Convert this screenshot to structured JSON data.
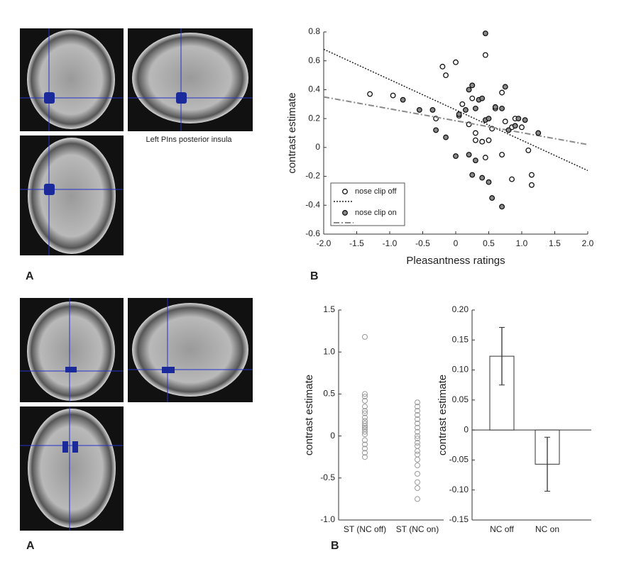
{
  "labels": {
    "caption": "Left PIns posterior insula",
    "top_left": "A",
    "top_right": "B",
    "bottom_left": "A",
    "bottom_right": "B"
  },
  "chart_data": [
    {
      "type": "scatter",
      "x_label": "Pleasantness ratings",
      "y_label": "contrast estimate",
      "xlim": [
        -2,
        2
      ],
      "ylim": [
        -0.6,
        0.8
      ],
      "xticks": [
        {
          "value": -2,
          "label": "-2.0"
        },
        -1.5,
        {
          "value": -1,
          "label": "-1.0"
        },
        -0.5,
        0,
        0.5,
        {
          "value": 1,
          "label": "1.0"
        },
        1.5,
        {
          "value": 2,
          "label": "2.0"
        }
      ],
      "yticks": [
        -0.6,
        -0.4,
        -0.2,
        0,
        0.2,
        0.4,
        0.6,
        0.8
      ],
      "legend": "lower left",
      "series": [
        {
          "name": "nose clip off",
          "color": "#ffffff",
          "line_color": "#222222",
          "x": [
            -1.3,
            -0.95,
            -0.2,
            -0.15,
            0,
            0.45,
            0.1,
            0.25,
            0.3,
            0.3,
            0.4,
            0.5,
            0.55,
            0.2,
            0.7,
            0.75,
            0.85,
            0.9,
            1,
            1.1,
            1.15,
            1.15,
            0.85,
            0.7,
            0.45,
            0.05,
            0.6,
            -0.3
          ],
          "y": [
            0.37,
            0.36,
            0.56,
            0.5,
            0.59,
            0.64,
            0.3,
            0.34,
            0.1,
            0.05,
            0.04,
            0.05,
            0.13,
            0.16,
            0.38,
            0.18,
            0.14,
            0.2,
            0.14,
            -0.02,
            -0.19,
            -0.26,
            -0.22,
            -0.05,
            -0.07,
            0.22,
            0.27,
            0.2
          ],
          "trend": {
            "x": [
              -2,
              2
            ],
            "y": [
              0.68,
              -0.16
            ]
          }
        },
        {
          "name": "nose clip on",
          "color": "#8a8a8a",
          "line_color": "#8a8a8a",
          "x": [
            0.45,
            -0.8,
            -0.55,
            -0.35,
            -0.3,
            -0.15,
            0,
            0.05,
            0.15,
            0.2,
            0.25,
            0.3,
            0.35,
            0.4,
            0.45,
            0.5,
            0.6,
            0.7,
            0.75,
            0.8,
            0.9,
            0.95,
            1.05,
            1.25,
            0.25,
            0.3,
            0.4,
            0.5,
            0.55,
            0.7,
            0.2
          ],
          "y": [
            0.79,
            0.33,
            0.26,
            0.26,
            0.12,
            0.07,
            -0.06,
            0.23,
            0.26,
            0.4,
            0.43,
            0.27,
            0.33,
            0.34,
            0.19,
            0.2,
            0.28,
            0.27,
            0.42,
            0.12,
            0.15,
            0.2,
            0.19,
            0.1,
            -0.19,
            -0.09,
            -0.21,
            -0.24,
            -0.35,
            -0.41,
            -0.05
          ],
          "trend": {
            "x": [
              -2,
              2
            ],
            "y": [
              0.35,
              0.02
            ]
          }
        }
      ]
    },
    {
      "type": "strip",
      "y_label": "contrast estimate",
      "color": "#999999",
      "categories": [
        "ST (NC off)",
        "ST (NC on)"
      ],
      "ylim": [
        -1,
        1.5
      ],
      "yticks": [
        {
          "value": -1,
          "label": "-1.0"
        },
        -0.5,
        0,
        0.5,
        {
          "value": 1,
          "label": "1.0"
        },
        1.5
      ],
      "values": [
        [
          1.18,
          0.5,
          0.47,
          0.42,
          0.35,
          0.3,
          0.27,
          0.22,
          0.18,
          0.15,
          0.12,
          0.1,
          0.08,
          0.05,
          0.02,
          -0.05,
          -0.1,
          -0.15,
          -0.2,
          -0.25
        ],
        [
          0.4,
          0.35,
          0.3,
          0.25,
          0.2,
          0.15,
          0.1,
          0.05,
          0,
          -0.03,
          -0.08,
          -0.12,
          -0.18,
          -0.22,
          -0.28,
          -0.35,
          -0.45,
          -0.55,
          -0.62,
          -0.75
        ]
      ]
    },
    {
      "type": "bar",
      "y_label": "contrast estimate",
      "color": "#ffffff",
      "categories": [
        "NC off",
        "NC on"
      ],
      "values": [
        0.123,
        -0.057
      ],
      "errors": [
        0.048,
        0.045
      ],
      "ylim": [
        -0.15,
        0.2
      ],
      "yticks": [
        {
          "value": -0.15,
          "label": "-0.15"
        },
        {
          "value": -0.1,
          "label": "-0.10"
        },
        {
          "value": -0.05,
          "label": "-0.05"
        },
        0,
        {
          "value": 0.05,
          "label": "0.05"
        },
        {
          "value": 0.1,
          "label": "0.10"
        },
        {
          "value": 0.15,
          "label": "0.15"
        },
        {
          "value": 0.2,
          "label": "0.20"
        }
      ]
    }
  ]
}
